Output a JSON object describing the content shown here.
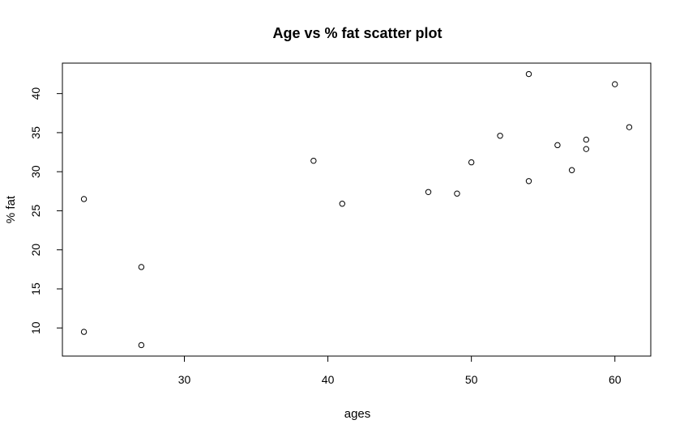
{
  "chart_data": {
    "type": "scatter",
    "title": "Age vs % fat scatter plot",
    "xlabel": "ages",
    "ylabel": "% fat",
    "xlim": [
      21.5,
      62.5
    ],
    "ylim": [
      6.4,
      43.9
    ],
    "xticks": [
      30,
      40,
      50,
      60
    ],
    "yticks": [
      10,
      15,
      20,
      25,
      30,
      35,
      40
    ],
    "grid": false,
    "legend": "none",
    "series": [
      {
        "x": [
          23,
          23,
          27,
          27,
          39,
          41,
          47,
          49,
          50,
          52,
          54,
          54,
          56,
          57,
          58,
          58,
          60,
          61
        ],
        "y": [
          9.5,
          26.5,
          7.8,
          17.8,
          31.4,
          25.9,
          27.4,
          27.2,
          31.2,
          34.6,
          42.5,
          28.8,
          33.4,
          30.2,
          34.1,
          32.9,
          41.2,
          35.7
        ]
      }
    ]
  }
}
